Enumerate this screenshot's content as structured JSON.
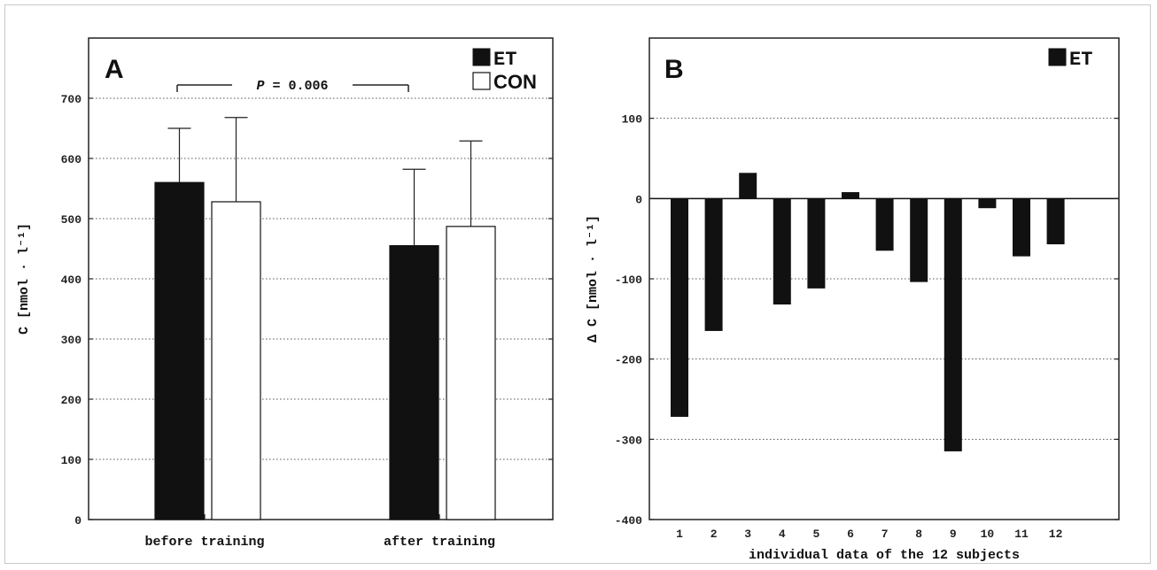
{
  "chart_data": [
    {
      "type": "bar",
      "panel_label": "A",
      "ylabel": "C [nmol · l⁻¹]",
      "ylim": [
        0,
        800
      ],
      "yticks": [
        0,
        100,
        200,
        300,
        400,
        500,
        600,
        700
      ],
      "categories": [
        "before training",
        "after training"
      ],
      "series": [
        {
          "name": "ET",
          "color": "#111111",
          "values": [
            560,
            455
          ],
          "error": [
            90,
            127
          ]
        },
        {
          "name": "CON",
          "color": "#ffffff",
          "values": [
            528,
            487
          ],
          "error": [
            140,
            142
          ]
        }
      ],
      "annotation": {
        "text_p": "P",
        "text_rest": " = 0.006"
      },
      "grid": true,
      "legend": "top-right"
    },
    {
      "type": "bar",
      "panel_label": "B",
      "ylabel": "Δ C [nmol · l⁻¹]",
      "xlabel": "individual data of the 12 subjects",
      "ylim": [
        -400,
        200
      ],
      "yticks": [
        -400,
        -300,
        -200,
        -100,
        0,
        100
      ],
      "categories": [
        "1",
        "2",
        "3",
        "4",
        "5",
        "6",
        "7",
        "8",
        "9",
        "10",
        "11",
        "12"
      ],
      "series": [
        {
          "name": "ET",
          "color": "#111111",
          "values": [
            -272,
            -165,
            32,
            -132,
            -112,
            8,
            -65,
            -104,
            -315,
            -12,
            -72,
            -57
          ]
        }
      ],
      "grid": true,
      "legend": "top-right"
    }
  ]
}
